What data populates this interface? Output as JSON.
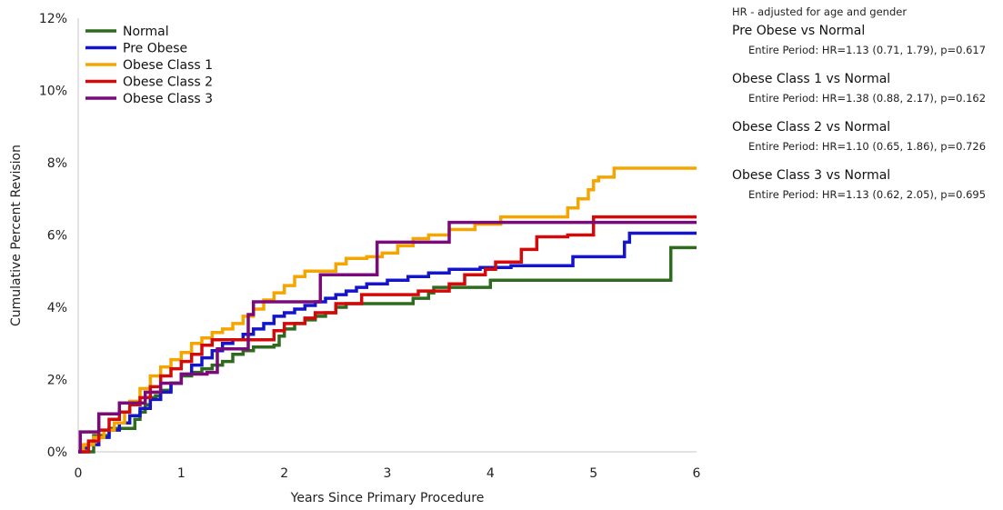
{
  "chart_data": {
    "type": "line",
    "step": true,
    "xlabel": "Years Since Primary Procedure",
    "ylabel": "Cumulative Percent Revision",
    "xlim": [
      0,
      6
    ],
    "ylim": [
      0,
      12
    ],
    "x_ticks": [
      "0",
      "1",
      "2",
      "3",
      "4",
      "5",
      "6"
    ],
    "y_ticks": [
      "0%",
      "2%",
      "4%",
      "6%",
      "8%",
      "10%",
      "12%"
    ],
    "grid": false,
    "legend_position": "top-left",
    "series": [
      {
        "name": "Normal",
        "color": "#2e6b1f",
        "points": [
          [
            0,
            0
          ],
          [
            0.15,
            0
          ],
          [
            0.15,
            0.45
          ],
          [
            0.3,
            0.65
          ],
          [
            0.5,
            0.65
          ],
          [
            0.55,
            0.9
          ],
          [
            0.6,
            1.1
          ],
          [
            0.65,
            1.3
          ],
          [
            0.7,
            1.5
          ],
          [
            0.75,
            1.55
          ],
          [
            0.8,
            1.7
          ],
          [
            0.9,
            1.9
          ],
          [
            1.0,
            2.1
          ],
          [
            1.1,
            2.2
          ],
          [
            1.2,
            2.3
          ],
          [
            1.3,
            2.4
          ],
          [
            1.4,
            2.5
          ],
          [
            1.5,
            2.7
          ],
          [
            1.6,
            2.8
          ],
          [
            1.7,
            2.9
          ],
          [
            1.9,
            2.95
          ],
          [
            1.95,
            3.2
          ],
          [
            2.0,
            3.4
          ],
          [
            2.1,
            3.55
          ],
          [
            2.2,
            3.65
          ],
          [
            2.3,
            3.75
          ],
          [
            2.4,
            3.85
          ],
          [
            2.5,
            4.0
          ],
          [
            2.6,
            4.1
          ],
          [
            3.0,
            4.1
          ],
          [
            3.25,
            4.1
          ],
          [
            3.25,
            4.25
          ],
          [
            3.4,
            4.4
          ],
          [
            3.45,
            4.55
          ],
          [
            4.0,
            4.75
          ],
          [
            4.5,
            4.75
          ],
          [
            5.0,
            4.75
          ],
          [
            5.5,
            4.75
          ],
          [
            5.75,
            4.75
          ],
          [
            5.75,
            5.65
          ],
          [
            6.0,
            5.65
          ]
        ]
      },
      {
        "name": "Pre Obese",
        "color": "#1414c8",
        "points": [
          [
            0,
            0
          ],
          [
            0.05,
            0.1
          ],
          [
            0.1,
            0.2
          ],
          [
            0.2,
            0.4
          ],
          [
            0.3,
            0.6
          ],
          [
            0.4,
            0.8
          ],
          [
            0.5,
            1.0
          ],
          [
            0.6,
            1.2
          ],
          [
            0.7,
            1.45
          ],
          [
            0.8,
            1.65
          ],
          [
            0.9,
            1.9
          ],
          [
            1.0,
            2.15
          ],
          [
            1.1,
            2.4
          ],
          [
            1.2,
            2.6
          ],
          [
            1.3,
            2.8
          ],
          [
            1.4,
            3.0
          ],
          [
            1.5,
            3.1
          ],
          [
            1.6,
            3.25
          ],
          [
            1.7,
            3.4
          ],
          [
            1.8,
            3.55
          ],
          [
            1.9,
            3.75
          ],
          [
            2.0,
            3.85
          ],
          [
            2.1,
            3.95
          ],
          [
            2.2,
            4.05
          ],
          [
            2.3,
            4.15
          ],
          [
            2.4,
            4.25
          ],
          [
            2.5,
            4.35
          ],
          [
            2.6,
            4.45
          ],
          [
            2.7,
            4.55
          ],
          [
            2.8,
            4.65
          ],
          [
            3.0,
            4.75
          ],
          [
            3.2,
            4.85
          ],
          [
            3.4,
            4.95
          ],
          [
            3.6,
            5.05
          ],
          [
            3.9,
            5.1
          ],
          [
            4.2,
            5.15
          ],
          [
            4.5,
            5.15
          ],
          [
            4.8,
            5.15
          ],
          [
            4.8,
            5.4
          ],
          [
            5.3,
            5.4
          ],
          [
            5.3,
            5.8
          ],
          [
            5.35,
            6.05
          ],
          [
            6.0,
            6.05
          ]
        ]
      },
      {
        "name": "Obese Class 1",
        "color": "#f5a500",
        "points": [
          [
            0,
            0
          ],
          [
            0.05,
            0.2
          ],
          [
            0.15,
            0.4
          ],
          [
            0.25,
            0.6
          ],
          [
            0.35,
            0.8
          ],
          [
            0.45,
            1.1
          ],
          [
            0.5,
            1.4
          ],
          [
            0.6,
            1.75
          ],
          [
            0.7,
            2.1
          ],
          [
            0.8,
            2.35
          ],
          [
            0.9,
            2.55
          ],
          [
            1.0,
            2.75
          ],
          [
            1.1,
            3.0
          ],
          [
            1.2,
            3.15
          ],
          [
            1.3,
            3.3
          ],
          [
            1.4,
            3.4
          ],
          [
            1.5,
            3.55
          ],
          [
            1.6,
            3.75
          ],
          [
            1.7,
            3.95
          ],
          [
            1.8,
            4.2
          ],
          [
            1.9,
            4.4
          ],
          [
            2.0,
            4.6
          ],
          [
            2.1,
            4.85
          ],
          [
            2.2,
            5.0
          ],
          [
            2.4,
            5.0
          ],
          [
            2.5,
            5.2
          ],
          [
            2.6,
            5.35
          ],
          [
            2.8,
            5.4
          ],
          [
            2.95,
            5.5
          ],
          [
            3.1,
            5.7
          ],
          [
            3.25,
            5.9
          ],
          [
            3.4,
            6.0
          ],
          [
            3.6,
            6.15
          ],
          [
            3.85,
            6.3
          ],
          [
            4.1,
            6.5
          ],
          [
            4.4,
            6.5
          ],
          [
            4.75,
            6.5
          ],
          [
            4.75,
            6.75
          ],
          [
            4.85,
            7.0
          ],
          [
            4.95,
            7.25
          ],
          [
            5.0,
            7.5
          ],
          [
            5.05,
            7.6
          ],
          [
            5.2,
            7.85
          ],
          [
            6.0,
            7.85
          ]
        ]
      },
      {
        "name": "Obese Class 2",
        "color": "#d20a0a",
        "points": [
          [
            0,
            0
          ],
          [
            0.1,
            0.3
          ],
          [
            0.2,
            0.6
          ],
          [
            0.3,
            0.9
          ],
          [
            0.4,
            1.1
          ],
          [
            0.5,
            1.3
          ],
          [
            0.6,
            1.5
          ],
          [
            0.7,
            1.8
          ],
          [
            0.8,
            2.1
          ],
          [
            0.9,
            2.3
          ],
          [
            1.0,
            2.5
          ],
          [
            1.1,
            2.7
          ],
          [
            1.2,
            2.95
          ],
          [
            1.3,
            3.1
          ],
          [
            1.5,
            3.1
          ],
          [
            1.9,
            3.1
          ],
          [
            1.9,
            3.35
          ],
          [
            2.0,
            3.55
          ],
          [
            2.2,
            3.7
          ],
          [
            2.3,
            3.85
          ],
          [
            2.5,
            4.1
          ],
          [
            2.7,
            4.1
          ],
          [
            2.75,
            4.35
          ],
          [
            3.0,
            4.35
          ],
          [
            3.3,
            4.35
          ],
          [
            3.3,
            4.45
          ],
          [
            3.6,
            4.65
          ],
          [
            3.75,
            4.9
          ],
          [
            3.95,
            5.05
          ],
          [
            4.05,
            5.25
          ],
          [
            4.1,
            5.25
          ],
          [
            4.3,
            5.6
          ],
          [
            4.45,
            5.95
          ],
          [
            4.75,
            6.0
          ],
          [
            5.0,
            6.0
          ],
          [
            5.0,
            6.5
          ],
          [
            6.0,
            6.5
          ]
        ]
      },
      {
        "name": "Obese Class 3",
        "color": "#7a0a7a",
        "points": [
          [
            0,
            0
          ],
          [
            0.02,
            0.55
          ],
          [
            0.2,
            1.05
          ],
          [
            0.4,
            1.35
          ],
          [
            0.65,
            1.65
          ],
          [
            0.8,
            1.9
          ],
          [
            1.0,
            2.15
          ],
          [
            1.2,
            2.15
          ],
          [
            1.25,
            2.15
          ],
          [
            1.25,
            2.2
          ],
          [
            1.35,
            2.2
          ],
          [
            1.35,
            2.85
          ],
          [
            1.65,
            3.0
          ],
          [
            1.65,
            3.8
          ],
          [
            1.7,
            4.15
          ],
          [
            2.0,
            4.15
          ],
          [
            2.35,
            4.15
          ],
          [
            2.35,
            4.9
          ],
          [
            2.9,
            4.9
          ],
          [
            2.9,
            5.8
          ],
          [
            3.3,
            5.8
          ],
          [
            3.6,
            5.8
          ],
          [
            3.6,
            6.35
          ],
          [
            4.0,
            6.35
          ],
          [
            6.0,
            6.35
          ]
        ]
      }
    ],
    "annotations": {
      "header": "HR - adjusted for age and gender",
      "comparisons": [
        {
          "title": "Pre Obese vs Normal",
          "detail": "Entire Period: HR=1.13 (0.71, 1.79), p=0.617"
        },
        {
          "title": "Obese Class 1 vs Normal",
          "detail": "Entire Period: HR=1.38 (0.88, 2.17), p=0.162"
        },
        {
          "title": "Obese Class 2 vs Normal",
          "detail": "Entire Period: HR=1.10 (0.65, 1.86), p=0.726"
        },
        {
          "title": "Obese Class 3 vs Normal",
          "detail": "Entire Period: HR=1.13 (0.62, 2.05), p=0.695"
        }
      ]
    }
  }
}
